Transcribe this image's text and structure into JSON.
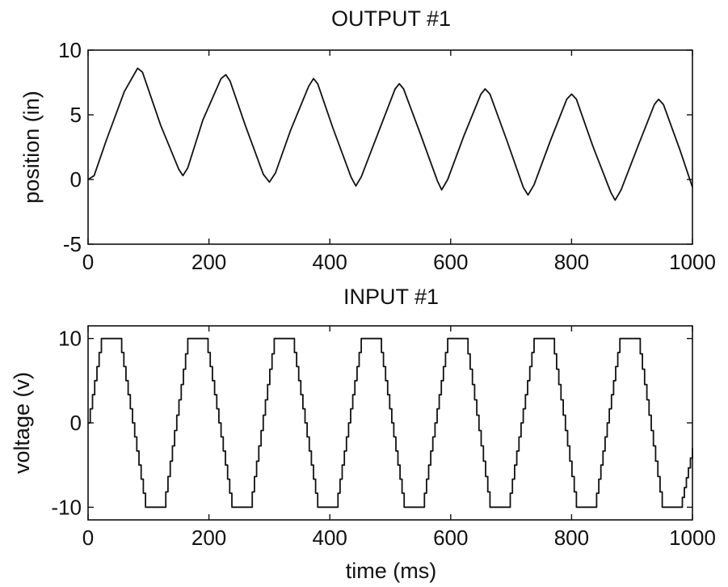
{
  "chart_data": [
    {
      "type": "line",
      "title": "OUTPUT #1",
      "xlabel": "",
      "ylabel": "position (in)",
      "xlim": [
        0,
        1000
      ],
      "ylim": [
        -5,
        10
      ],
      "xticks": [
        0,
        200,
        400,
        600,
        800,
        1000
      ],
      "yticks": [
        -5,
        0,
        5,
        10
      ],
      "xtick_labels": [
        "0",
        "200",
        "400",
        "600",
        "800",
        "1000"
      ],
      "ytick_labels": [
        "-5",
        "0",
        "5",
        "10"
      ],
      "grid": false,
      "series": [
        {
          "x": [
            0,
            10,
            30,
            60,
            82,
            90,
            120,
            150,
            157,
            165,
            190,
            220,
            228,
            235,
            260,
            290,
            300,
            310,
            335,
            365,
            373,
            380,
            405,
            435,
            443,
            452,
            480,
            508,
            515,
            522,
            550,
            578,
            585,
            595,
            622,
            650,
            657,
            665,
            693,
            720,
            728,
            738,
            765,
            792,
            800,
            808,
            835,
            865,
            872,
            882,
            910,
            937,
            944,
            952,
            980,
            1000
          ],
          "y": [
            0,
            0.3,
            3.0,
            6.8,
            8.6,
            8.3,
            4.2,
            0.8,
            0.3,
            0.9,
            4.6,
            7.8,
            8.1,
            7.6,
            4.2,
            0.4,
            -0.2,
            0.5,
            3.8,
            7.2,
            7.8,
            7.4,
            4.0,
            0.2,
            -0.5,
            0.2,
            3.6,
            7.0,
            7.4,
            7.0,
            3.5,
            -0.1,
            -0.8,
            0.0,
            3.4,
            6.6,
            7.0,
            6.6,
            3.0,
            -0.6,
            -1.2,
            -0.4,
            3.0,
            6.2,
            6.6,
            6.2,
            2.6,
            -1.0,
            -1.6,
            -0.8,
            2.6,
            5.8,
            6.2,
            5.8,
            2.2,
            -0.6
          ]
        }
      ]
    },
    {
      "type": "line",
      "title": "INPUT #1",
      "xlabel": "time (ms)",
      "ylabel": "voltage (v)",
      "xlim": [
        0,
        1000
      ],
      "ylim": [
        -11.5,
        11.5
      ],
      "xticks": [
        0,
        200,
        400,
        600,
        800,
        1000
      ],
      "yticks": [
        -10,
        0,
        10
      ],
      "xtick_labels": [
        "0",
        "200",
        "400",
        "600",
        "800",
        "1000"
      ],
      "ytick_labels": [
        "-10",
        "0",
        "10"
      ],
      "grid": false,
      "series": [
        {
          "x": [
            0,
            22,
            52,
            95,
            125,
            165,
            195,
            238,
            268,
            308,
            338,
            380,
            410,
            452,
            482,
            523,
            553,
            595,
            625,
            665,
            695,
            738,
            768,
            808,
            838,
            880,
            910,
            950,
            980,
            1000
          ],
          "y": [
            0,
            10,
            10,
            -10,
            -10,
            10,
            10,
            -10,
            -10,
            10,
            10,
            -10,
            -10,
            10,
            10,
            -10,
            -10,
            10,
            10,
            -10,
            -10,
            10,
            10,
            -10,
            -10,
            10,
            10,
            -10,
            -10,
            -3
          ]
        }
      ]
    }
  ]
}
